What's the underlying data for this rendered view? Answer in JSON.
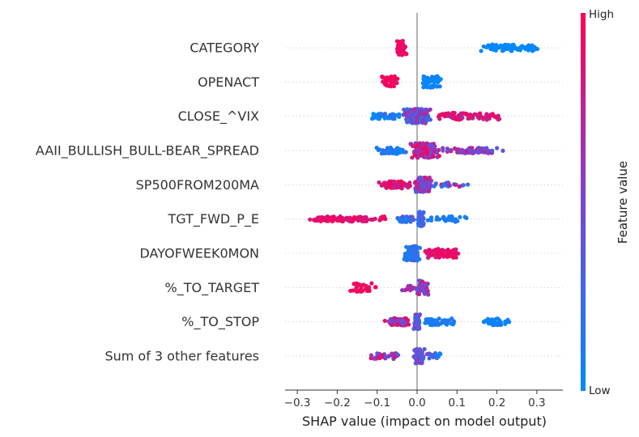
{
  "chart_data": {
    "type": "scatter",
    "subtype": "shap-beeswarm",
    "xlabel": "SHAP value (impact on model output)",
    "xlim": [
      -0.33,
      0.36
    ],
    "xticks": [
      -0.3,
      -0.2,
      -0.1,
      0.0,
      0.1,
      0.2,
      0.3
    ],
    "xtick_labels": [
      "−0.3",
      "−0.2",
      "−0.1",
      "0.0",
      "0.1",
      "0.2",
      "0.3"
    ],
    "vertical_line_at": 0.0,
    "grid": false,
    "colorbar": {
      "label": "Feature value",
      "high_label": "High",
      "low_label": "Low",
      "low_color": "#008bfb",
      "mid_color": "#7a45d3",
      "high_color": "#ff0052"
    },
    "features": [
      {
        "name": "CATEGORY",
        "clusters": [
          {
            "min": -0.055,
            "max": -0.025,
            "n": 60,
            "c0": 0.88,
            "c1": 1.0,
            "spread": 1.0
          },
          {
            "min": 0.14,
            "max": 0.33,
            "n": 80,
            "c0": 0.0,
            "c1": 0.05,
            "spread": 0.45
          }
        ]
      },
      {
        "name": "OPENACT",
        "clusters": [
          {
            "min": -0.095,
            "max": -0.045,
            "n": 40,
            "c0": 0.9,
            "c1": 1.0,
            "spread": 0.8
          },
          {
            "min": 0.005,
            "max": 0.07,
            "n": 50,
            "c0": 0.0,
            "c1": 0.08,
            "spread": 0.8
          }
        ]
      },
      {
        "name": "CLOSE_^VIX",
        "clusters": [
          {
            "min": -0.13,
            "max": -0.03,
            "n": 45,
            "c0": 0.0,
            "c1": 0.2,
            "spread": 0.35
          },
          {
            "min": -0.04,
            "max": 0.04,
            "n": 170,
            "c0": 0.1,
            "c1": 0.75,
            "spread": 1.0
          },
          {
            "min": 0.02,
            "max": 0.24,
            "n": 90,
            "c0": 0.7,
            "c1": 1.0,
            "spread": 0.5
          }
        ]
      },
      {
        "name": "AAII_BULLISH_BULL-BEAR_SPREAD",
        "clusters": [
          {
            "min": -0.11,
            "max": -0.02,
            "n": 60,
            "c0": 0.0,
            "c1": 0.25,
            "spread": 0.45
          },
          {
            "min": -0.02,
            "max": 0.06,
            "n": 160,
            "c0": 0.4,
            "c1": 1.0,
            "spread": 1.0
          },
          {
            "min": 0.05,
            "max": 0.225,
            "n": 70,
            "c0": 0.3,
            "c1": 0.8,
            "spread": 0.4
          }
        ]
      },
      {
        "name": "SP500FROM200MA",
        "clusters": [
          {
            "min": -0.1,
            "max": -0.01,
            "n": 60,
            "c0": 0.7,
            "c1": 1.0,
            "spread": 0.5
          },
          {
            "min": -0.01,
            "max": 0.04,
            "n": 110,
            "c0": 0.2,
            "c1": 0.9,
            "spread": 1.0
          },
          {
            "min": 0.03,
            "max": 0.13,
            "n": 25,
            "c0": 0.0,
            "c1": 1.0,
            "spread": 0.3
          }
        ]
      },
      {
        "name": "TGT_FWD_P_E",
        "clusters": [
          {
            "min": -0.3,
            "max": -0.05,
            "n": 90,
            "c0": 0.8,
            "c1": 1.0,
            "spread": 0.35
          },
          {
            "min": -0.06,
            "max": 0.0,
            "n": 30,
            "c0": 0.0,
            "c1": 0.5,
            "spread": 0.4
          },
          {
            "min": 0.0,
            "max": 0.02,
            "n": 60,
            "c0": 0.1,
            "c1": 0.45,
            "spread": 1.0
          },
          {
            "min": 0.02,
            "max": 0.14,
            "n": 30,
            "c0": 0.0,
            "c1": 0.15,
            "spread": 0.4
          }
        ]
      },
      {
        "name": "DAYOFWEEK0MON",
        "clusters": [
          {
            "min": -0.035,
            "max": 0.01,
            "n": 80,
            "c0": 0.0,
            "c1": 0.35,
            "spread": 1.0
          },
          {
            "min": 0.005,
            "max": 0.12,
            "n": 80,
            "c0": 0.8,
            "c1": 1.0,
            "spread": 0.6
          }
        ]
      },
      {
        "name": "%_TO_TARGET",
        "clusters": [
          {
            "min": -0.175,
            "max": -0.095,
            "n": 30,
            "c0": 0.92,
            "c1": 1.0,
            "spread": 0.6
          },
          {
            "min": -0.04,
            "max": 0.0,
            "n": 15,
            "c0": 0.5,
            "c1": 0.75,
            "spread": 0.4
          },
          {
            "min": -0.005,
            "max": 0.035,
            "n": 45,
            "c0": 0.3,
            "c1": 0.85,
            "spread": 1.0
          }
        ]
      },
      {
        "name": "%_TO_STOP",
        "clusters": [
          {
            "min": -0.085,
            "max": -0.005,
            "n": 60,
            "c0": 0.35,
            "c1": 1.0,
            "spread": 0.5
          },
          {
            "min": -0.01,
            "max": 0.01,
            "n": 60,
            "c0": 0.2,
            "c1": 0.6,
            "spread": 1.0
          },
          {
            "min": 0.0,
            "max": 0.11,
            "n": 60,
            "c0": 0.0,
            "c1": 0.2,
            "spread": 0.45
          },
          {
            "min": 0.15,
            "max": 0.24,
            "n": 35,
            "c0": 0.0,
            "c1": 0.1,
            "spread": 0.45
          }
        ]
      },
      {
        "name": "Sum of 3 other features",
        "clusters": [
          {
            "min": -0.135,
            "max": -0.025,
            "n": 40,
            "c0": 0.3,
            "c1": 1.0,
            "spread": 0.4
          },
          {
            "min": -0.01,
            "max": 0.02,
            "n": 80,
            "c0": 0.2,
            "c1": 0.7,
            "spread": 1.0
          },
          {
            "min": 0.02,
            "max": 0.065,
            "n": 20,
            "c0": 0.0,
            "c1": 0.5,
            "spread": 0.4
          }
        ]
      }
    ]
  }
}
